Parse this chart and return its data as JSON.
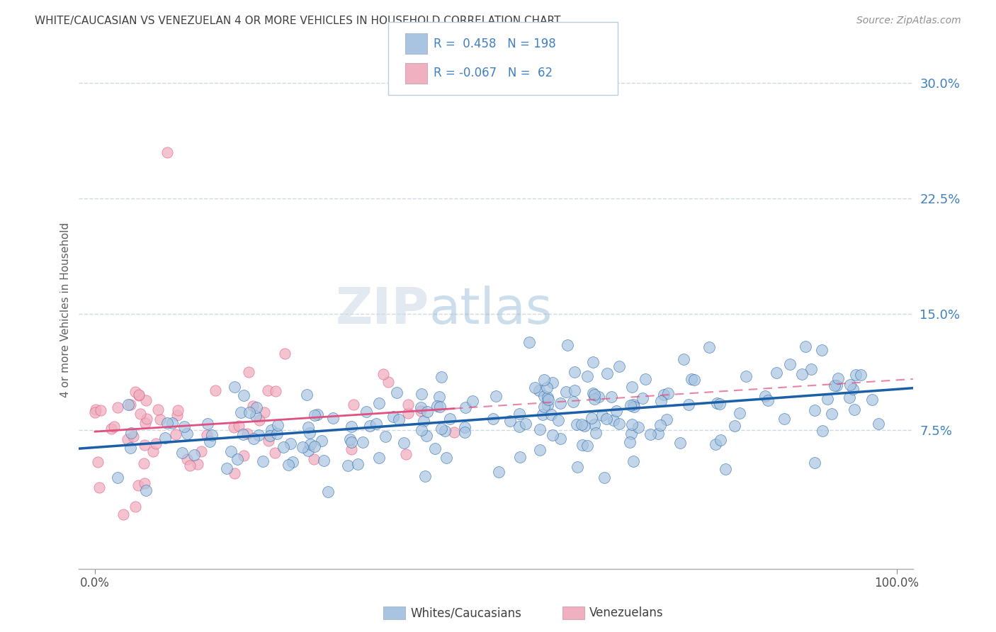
{
  "title": "WHITE/CAUCASIAN VS VENEZUELAN 4 OR MORE VEHICLES IN HOUSEHOLD CORRELATION CHART",
  "source": "Source: ZipAtlas.com",
  "ylabel": "4 or more Vehicles in Household",
  "legend_label1": "Whites/Caucasians",
  "legend_label2": "Venezuelans",
  "ytick_labels": [
    "",
    "7.5%",
    "15.0%",
    "22.5%",
    "30.0%"
  ],
  "ytick_vals": [
    0.0,
    7.5,
    15.0,
    22.5,
    30.0
  ],
  "blue_scatter_color": "#a8c4e0",
  "blue_line_color": "#1a5fa8",
  "pink_scatter_color": "#f0b0c0",
  "pink_line_color": "#e05080",
  "blue_r": 0.458,
  "blue_n": 198,
  "pink_r": -0.067,
  "pink_n": 62,
  "watermark_zip": "ZIP",
  "watermark_atlas": "atlas",
  "bg_color": "#ffffff",
  "grid_color": "#c8d4de",
  "title_color": "#404040",
  "source_color": "#909090",
  "axis_tick_color": "#4080c0",
  "legend_text_color": "#4080c0",
  "ylabel_color": "#606060"
}
